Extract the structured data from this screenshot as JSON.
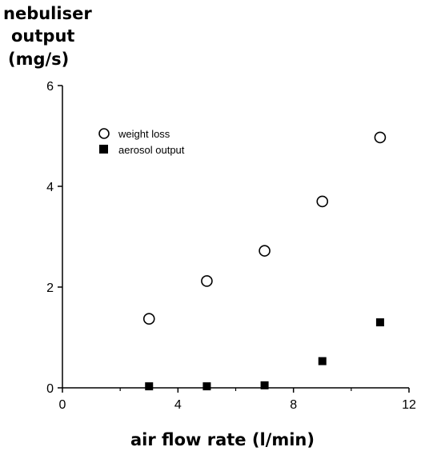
{
  "chart_data": {
    "type": "scatter",
    "title": "",
    "ylabel_lines": [
      "nebuliser",
      "output",
      "(mg/s)"
    ],
    "xlabel": "air flow rate (l/min)",
    "xlim": [
      0,
      12
    ],
    "ylim": [
      0,
      6
    ],
    "xticks": [
      0,
      4,
      8,
      12
    ],
    "yticks": [
      0,
      2,
      4,
      6
    ],
    "legend_position": "top-left",
    "series": [
      {
        "name": "weight loss",
        "marker": "open-circle",
        "x": [
          3,
          5,
          7,
          9,
          11
        ],
        "y": [
          1.37,
          2.12,
          2.72,
          3.7,
          4.97
        ]
      },
      {
        "name": "aerosol output",
        "marker": "filled-square",
        "x": [
          3,
          5,
          7,
          9,
          11
        ],
        "y": [
          0.03,
          0.03,
          0.05,
          0.53,
          1.3
        ]
      }
    ]
  }
}
